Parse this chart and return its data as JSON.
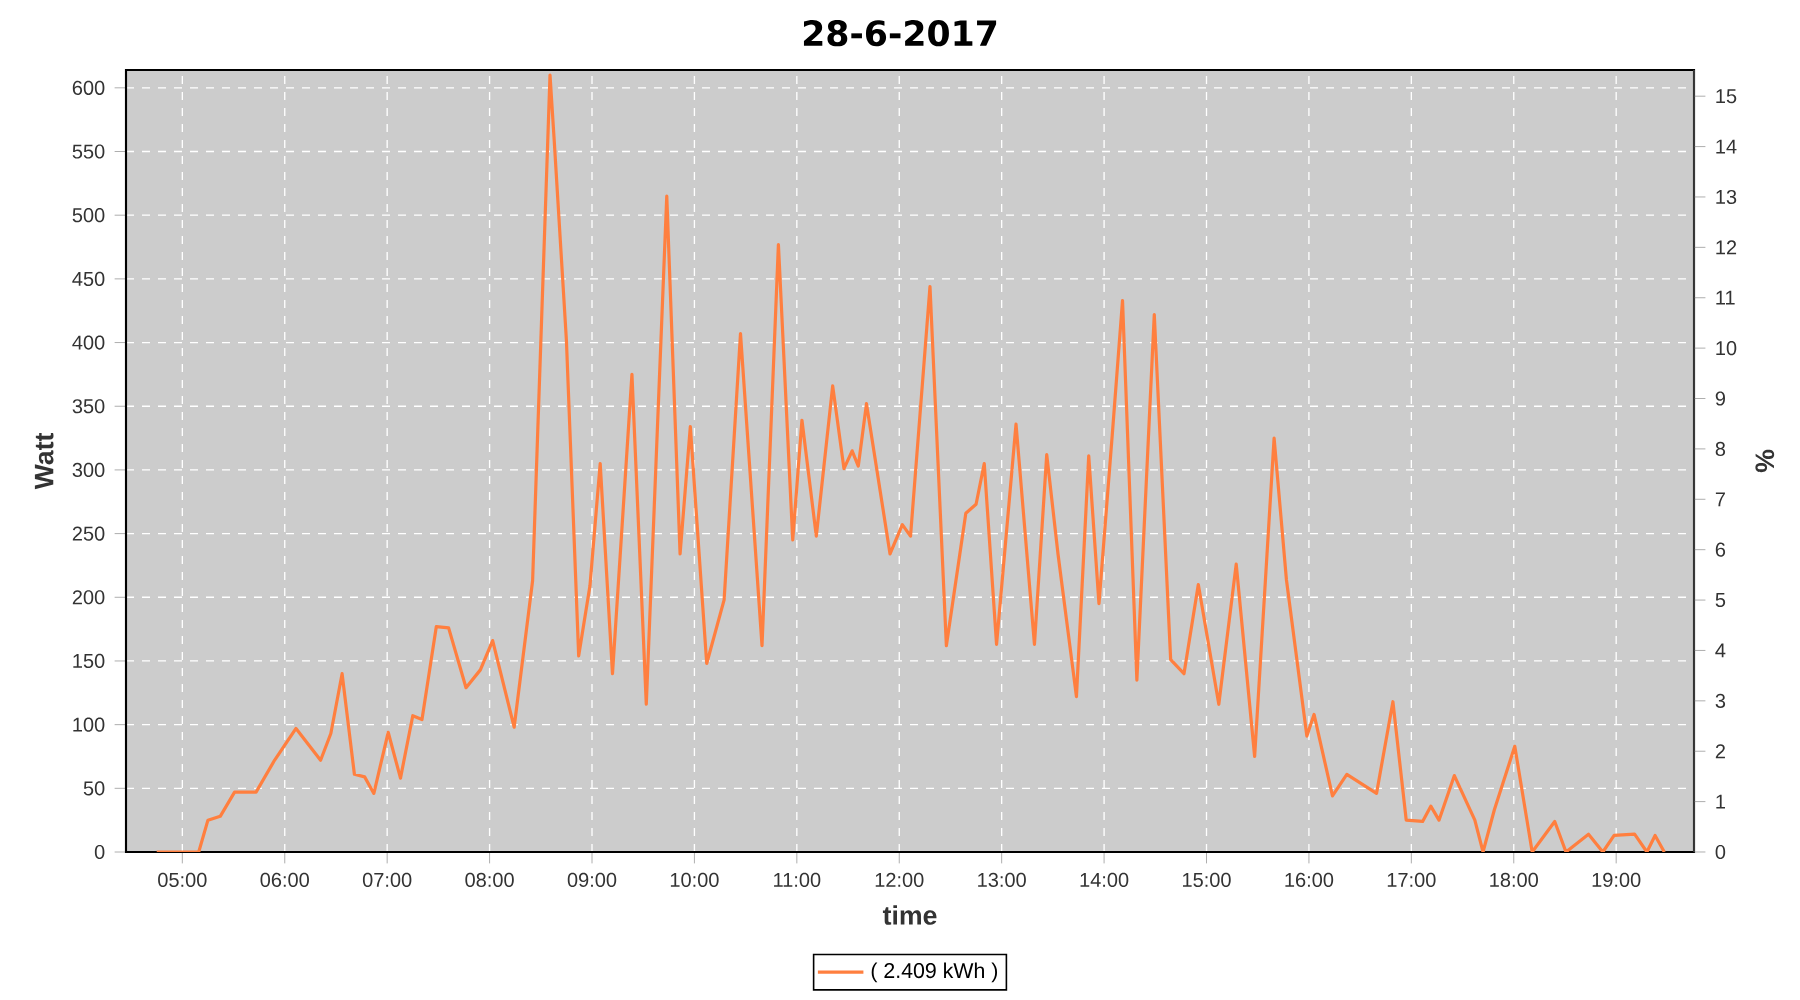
{
  "chart_data": {
    "type": "line",
    "title": "28-6-2017",
    "xlabel": "time",
    "ylabel": "Watt",
    "y2label": "%",
    "xlim": [
      4.45,
      19.76
    ],
    "xticks": [
      {
        "value": 5,
        "label": "05:00"
      },
      {
        "value": 6,
        "label": "06:00"
      },
      {
        "value": 7,
        "label": "07:00"
      },
      {
        "value": 8,
        "label": "08:00"
      },
      {
        "value": 9,
        "label": "09:00"
      },
      {
        "value": 10,
        "label": "10:00"
      },
      {
        "value": 11,
        "label": "11:00"
      },
      {
        "value": 12,
        "label": "12:00"
      },
      {
        "value": 13,
        "label": "13:00"
      },
      {
        "value": 14,
        "label": "14:00"
      },
      {
        "value": 15,
        "label": "15:00"
      },
      {
        "value": 16,
        "label": "16:00"
      },
      {
        "value": 17,
        "label": "17:00"
      },
      {
        "value": 18,
        "label": "18:00"
      },
      {
        "value": 19,
        "label": "19:00"
      }
    ],
    "ylim": [
      0,
      614
    ],
    "yticks": [
      0,
      50,
      100,
      150,
      200,
      250,
      300,
      350,
      400,
      450,
      500,
      550,
      600
    ],
    "y2lim": [
      0,
      15.52
    ],
    "y2ticks": [
      0,
      1,
      2,
      3,
      4,
      5,
      6,
      7,
      8,
      9,
      10,
      11,
      12,
      13,
      14,
      15
    ],
    "x": [
      4.75,
      5.16,
      5.25,
      5.37,
      5.51,
      5.72,
      5.9,
      6.11,
      6.35,
      6.45,
      6.56,
      6.68,
      6.78,
      6.87,
      7.01,
      7.13,
      7.25,
      7.34,
      7.48,
      7.6,
      7.77,
      7.91,
      8.03,
      8.24,
      8.42,
      8.59,
      8.63,
      8.75,
      8.87,
      8.98,
      9.08,
      9.2,
      9.39,
      9.53,
      9.73,
      9.86,
      9.96,
      10.12,
      10.29,
      10.45,
      10.66,
      10.82,
      10.96,
      11.05,
      11.19,
      11.35,
      11.46,
      11.54,
      11.6,
      11.68,
      11.91,
      12.03,
      12.11,
      12.3,
      12.46,
      12.65,
      12.75,
      12.83,
      12.95,
      13.14,
      13.32,
      13.44,
      13.55,
      13.73,
      13.85,
      13.95,
      14.08,
      14.18,
      14.32,
      14.49,
      14.65,
      14.78,
      14.92,
      15.12,
      15.29,
      15.47,
      15.66,
      15.78,
      15.98,
      16.05,
      16.23,
      16.37,
      16.66,
      16.82,
      16.95,
      17.11,
      17.19,
      17.27,
      17.42,
      17.62,
      17.7,
      17.81,
      18.01,
      18.18,
      18.4,
      18.51,
      18.73,
      18.87,
      18.98,
      19.18,
      19.3,
      19.38,
      19.47
    ],
    "series": [
      {
        "name": "( 2.409 kWh )",
        "color": "#ff7f3f",
        "values": [
          0,
          0,
          25,
          28,
          47,
          47,
          72,
          97,
          72,
          93,
          140,
          61,
          59,
          46,
          94,
          58,
          107,
          104,
          177,
          176,
          129,
          143,
          166,
          98,
          213,
          610,
          560,
          402,
          154,
          209,
          305,
          140,
          375,
          116,
          515,
          234,
          334,
          148,
          198,
          407,
          162,
          477,
          245,
          339,
          248,
          366,
          301,
          315,
          303,
          352,
          234,
          257,
          248,
          444,
          162,
          266,
          273,
          305,
          163,
          336,
          163,
          312,
          234,
          122,
          311,
          195,
          328,
          433,
          135,
          422,
          151,
          140,
          210,
          116,
          226,
          75,
          325,
          214,
          91,
          108,
          44,
          61,
          46,
          118,
          25,
          24,
          36,
          25,
          60,
          25,
          0,
          33,
          83,
          0,
          24,
          0,
          14,
          0,
          13,
          14,
          0,
          13,
          0
        ]
      }
    ],
    "grid": true,
    "legend": "bottom",
    "line_style": "solid",
    "marker": "none"
  }
}
